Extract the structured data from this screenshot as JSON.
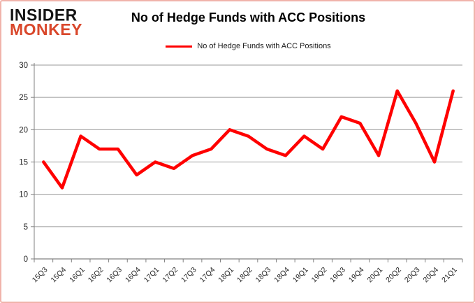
{
  "logo": {
    "line1": "INSIDER",
    "line2": "MONKEY"
  },
  "header": {
    "title": "No of Hedge Funds with ACC Positions"
  },
  "legend": {
    "label": "No of Hedge Funds with ACC Positions",
    "line_color": "#ff0000"
  },
  "colors": {
    "series_red": "#ff0000",
    "logo_red": "#d9472b",
    "gridline": "#9a9a9a",
    "axis": "#808080",
    "tick_text": "#262626",
    "frame_border": "#f0b3aa"
  },
  "chart_data": {
    "type": "line",
    "title": "No of Hedge Funds with ACC Positions",
    "categories": [
      "15Q3",
      "15Q4",
      "16Q1",
      "16Q2",
      "16Q3",
      "16Q4",
      "17Q1",
      "17Q2",
      "17Q3",
      "17Q4",
      "18Q1",
      "18Q2",
      "18Q3",
      "18Q4",
      "19Q1",
      "19Q2",
      "19Q3",
      "19Q4",
      "20Q1",
      "20Q2",
      "20Q3",
      "20Q4",
      "21Q1"
    ],
    "series": [
      {
        "name": "No of Hedge Funds with ACC Positions",
        "color": "#ff0000",
        "values": [
          15,
          11,
          19,
          17,
          17,
          13,
          15,
          14,
          16,
          17,
          20,
          19,
          17,
          16,
          19,
          17,
          22,
          21,
          16,
          26,
          21,
          15,
          26
        ]
      }
    ],
    "xlabel": "",
    "ylabel": "",
    "ylim": [
      0,
      30
    ],
    "yticks": [
      0,
      5,
      10,
      15,
      20,
      25,
      30
    ],
    "grid": true,
    "legend_position": "top-center"
  }
}
